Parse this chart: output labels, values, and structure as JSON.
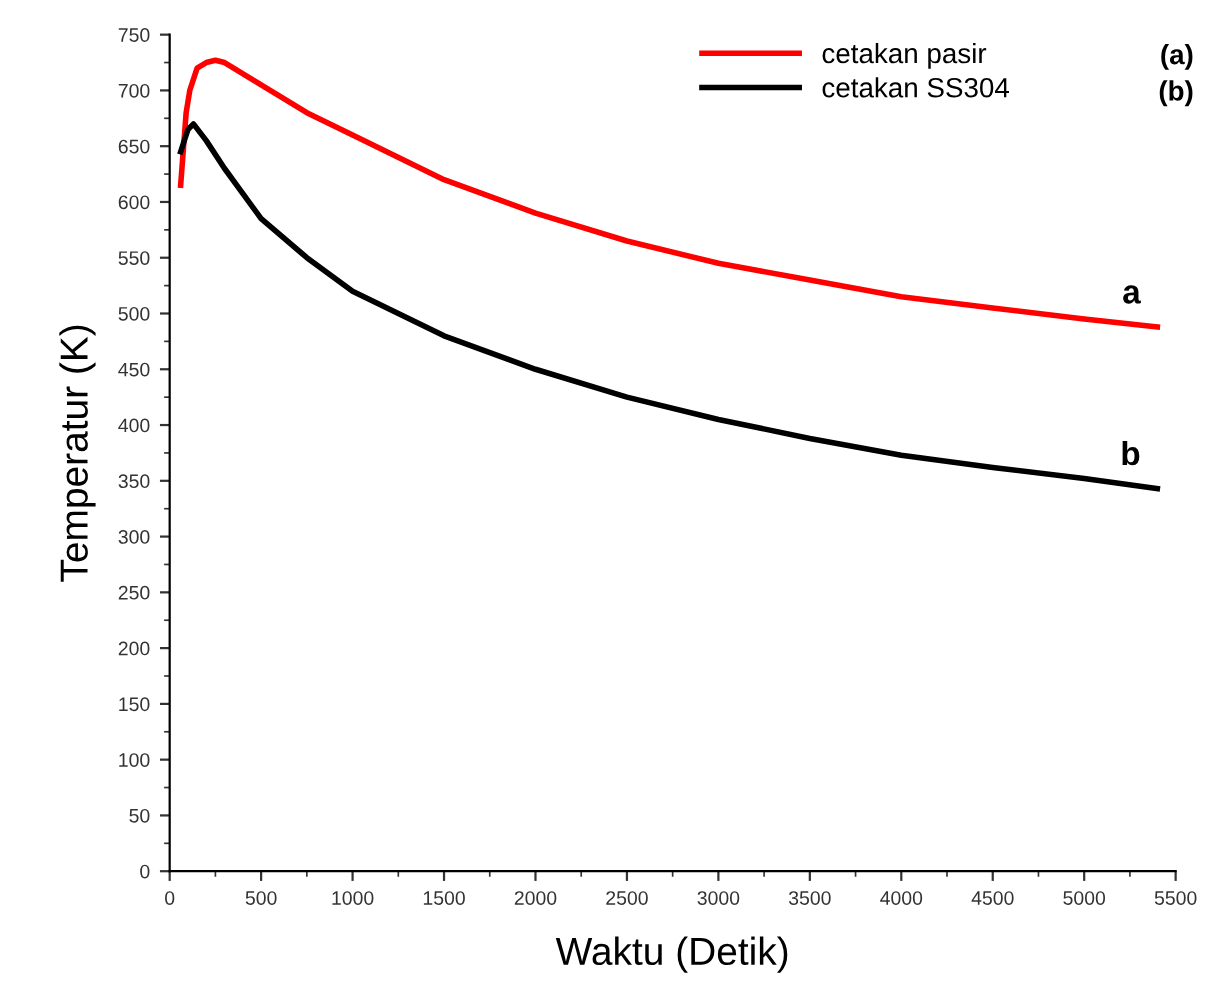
{
  "chart_data": {
    "type": "line",
    "xlabel": "Waktu (Detik)",
    "ylabel": "Temperatur (K)",
    "xlim": [
      0,
      5500
    ],
    "ylim": [
      0,
      750
    ],
    "xticks": [
      0,
      500,
      1000,
      1500,
      2000,
      2500,
      3000,
      3500,
      4000,
      4500,
      5000,
      5500
    ],
    "yticks": [
      0,
      50,
      100,
      150,
      200,
      250,
      300,
      350,
      400,
      450,
      500,
      550,
      600,
      650,
      700,
      750
    ],
    "grid": false,
    "legend": "top right",
    "marker": "none",
    "line_style": "solid",
    "series": [
      {
        "name": "cetakan pasir",
        "color": "#ff0000",
        "x": [
          60,
          90,
          110,
          150,
          200,
          250,
          300,
          500,
          750,
          1000,
          1500,
          2000,
          2500,
          3000,
          3500,
          4000,
          4500,
          5000,
          5400
        ],
        "values": [
          615,
          680,
          700,
          720,
          725,
          727,
          725,
          705,
          680,
          660,
          620,
          590,
          565,
          545,
          530,
          515,
          505,
          495,
          488
        ]
      },
      {
        "name": "cetakan SS304",
        "color": "#000000",
        "x": [
          60,
          100,
          130,
          200,
          300,
          500,
          750,
          1000,
          1500,
          2000,
          2500,
          3000,
          3500,
          4000,
          4500,
          5000,
          5400
        ],
        "values": [
          645,
          665,
          670,
          655,
          630,
          585,
          550,
          520,
          480,
          450,
          425,
          405,
          388,
          373,
          362,
          352,
          343
        ]
      }
    ],
    "annotations": [
      "(a)",
      "(b)",
      "a",
      "b"
    ]
  }
}
